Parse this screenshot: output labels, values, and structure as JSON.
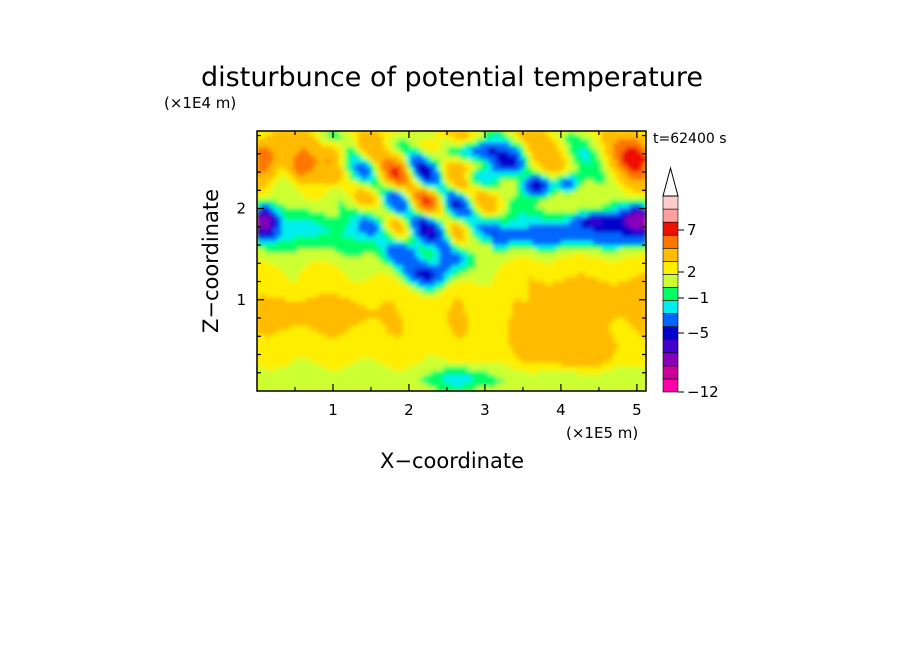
{
  "chart_data": {
    "type": "heatmap",
    "title": "disturbunce of potential temperature",
    "time_label": "t=62400 s",
    "xlabel": "X−coordinate",
    "ylabel": "Z−coordinate",
    "x_scale_label": "(×1E5 m)",
    "y_scale_label": "(×1E4 m)",
    "x_ticks": [
      "1",
      "2",
      "3",
      "4",
      "5"
    ],
    "y_ticks": [
      "1",
      "2"
    ],
    "xlim": [
      0,
      5.12
    ],
    "ylim": [
      0,
      2.85
    ],
    "colorbar": {
      "tick_labels": [
        "7",
        "2",
        "−1",
        "−5",
        "−12"
      ],
      "levels": [
        -12,
        -10,
        -8,
        -6,
        -5,
        -3,
        -1,
        0,
        1,
        2,
        3,
        5,
        7,
        9,
        11
      ],
      "colors": [
        "#ff00aa",
        "#cc0099",
        "#8800bb",
        "#4400cc",
        "#0000cc",
        "#0066ff",
        "#00eeee",
        "#00ff66",
        "#ccff33",
        "#ffee00",
        "#ffbb00",
        "#ff7700",
        "#ee1100",
        "#ffa0a0",
        "#ffcccc"
      ],
      "extend": "max"
    }
  }
}
